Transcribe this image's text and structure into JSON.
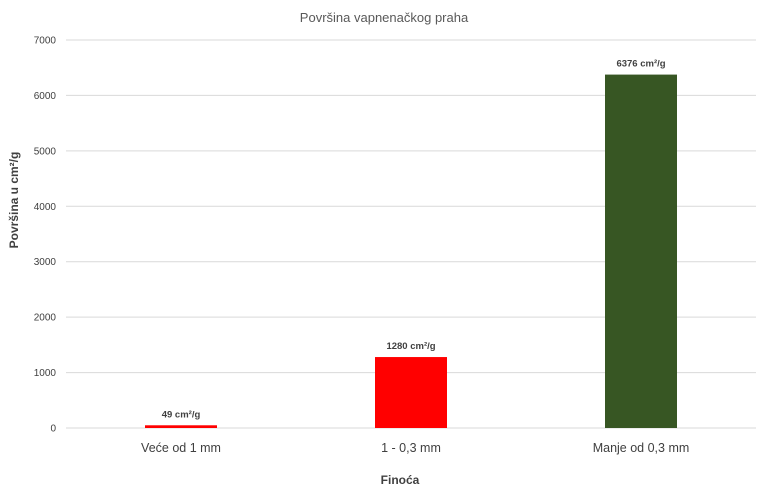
{
  "chart_data": {
    "type": "bar",
    "title": "Površina vapnenačkog praha",
    "xlabel": "Finoća",
    "ylabel": "Površina u cm²/g",
    "categories": [
      "Veće od 1 mm",
      "1 - 0,3 mm",
      "Manje od 0,3 mm"
    ],
    "values": [
      49,
      1280,
      6376
    ],
    "data_labels": [
      "49 cm²/g",
      "1280 cm²/g",
      "6376 cm²/g"
    ],
    "colors": [
      "#ff0000",
      "#ff0000",
      "#375623"
    ],
    "ylim": [
      0,
      7000
    ],
    "yticks": [
      0,
      1000,
      2000,
      3000,
      4000,
      5000,
      6000,
      7000
    ],
    "grid": true,
    "legend": "none"
  }
}
